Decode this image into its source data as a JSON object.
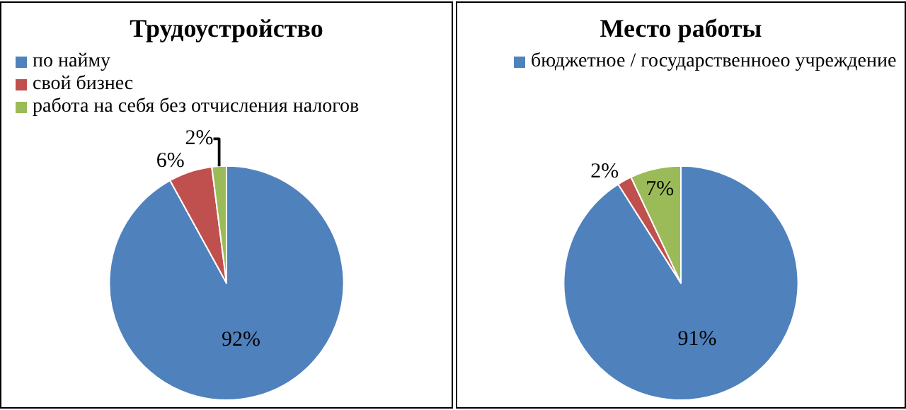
{
  "chart_data": [
    {
      "type": "pie",
      "title": "Трудоустройство",
      "categories": [
        "по найму",
        "свой бизнес",
        "работа на себя без отчисления налогов"
      ],
      "values": [
        92,
        6,
        2
      ],
      "colors": [
        "#4f81bd",
        "#c0504d",
        "#9bbb59"
      ],
      "value_labels": [
        "92%",
        "6%",
        "2%"
      ],
      "legend": "top"
    },
    {
      "type": "pie",
      "title": "Место работы",
      "categories": [
        "бюджетное / государственноео учреждение",
        null,
        null
      ],
      "values": [
        91,
        2,
        7
      ],
      "colors": [
        "#4f81bd",
        "#c0504d",
        "#9bbb59"
      ],
      "value_labels": [
        "91%",
        "2%",
        "7%"
      ],
      "legend": "top"
    }
  ]
}
